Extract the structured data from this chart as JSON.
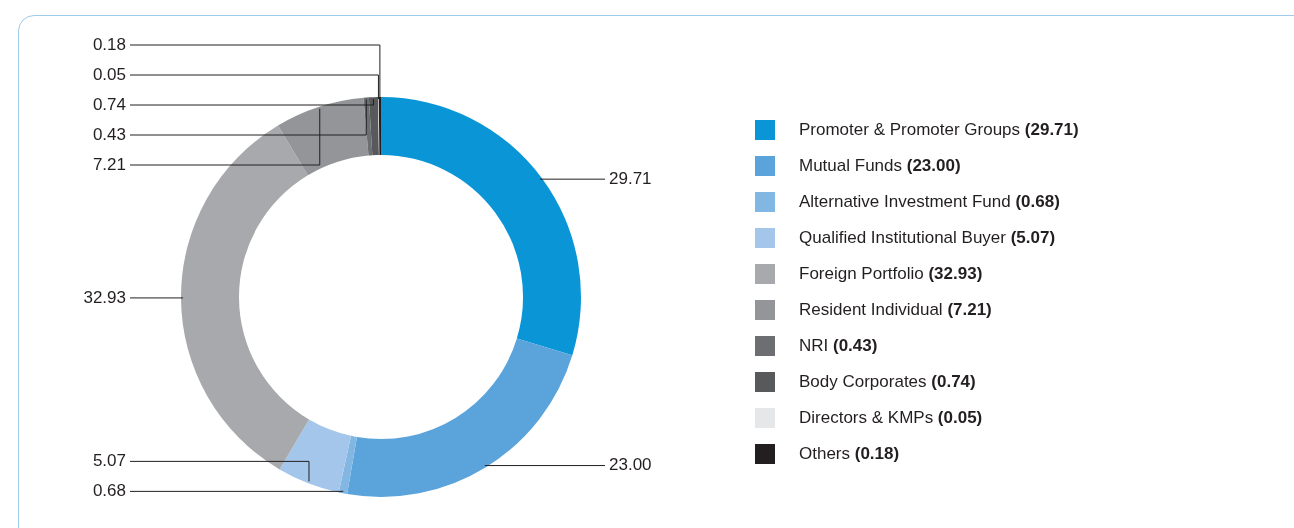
{
  "chart_data": {
    "type": "donut",
    "categories": [
      "Promoter & Promoter Groups (29.71)",
      "Mutual Funds (23.00)",
      "Alternative Investment Fund (0.68)",
      "Qualified Institutional Buyer (5.07)",
      "Foreign Portfolio (32.93)",
      "Resident Individual (7.21)",
      "NRI (0.43)",
      "Body Corporates (0.74)",
      "Directors & KMPs (0.05)",
      "Others (0.18)"
    ],
    "values": [
      29.71,
      23.0,
      0.68,
      5.07,
      32.93,
      7.21,
      0.43,
      0.74,
      0.05,
      0.18
    ],
    "value_labels": [
      "29.71",
      "23.00",
      "0.68",
      "5.07",
      "32.93",
      "7.21",
      "0.43",
      "0.74",
      "0.05",
      "0.18"
    ],
    "colors": [
      "#0a96d6",
      "#5ba4db",
      "#82b6e3",
      "#a4c6ea",
      "#a8a9ac",
      "#939598",
      "#6d6e71",
      "#58595b",
      "#e6e7e8",
      "#231f20"
    ],
    "legend": "right"
  }
}
